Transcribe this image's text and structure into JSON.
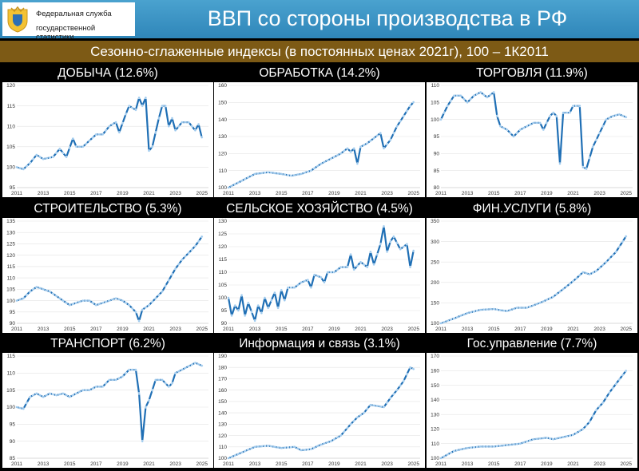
{
  "header": {
    "logo_line1": "Федеральная служба",
    "logo_line2": "государственной статистики",
    "title": "ВВП со стороны производства в РФ"
  },
  "subtitle": "Сезонно-сглаженные индексы (в постоянных ценах 2021г), 100 – 1К2011",
  "colors": {
    "line": "#1f6fb5",
    "marker": "#9cc9ee",
    "header": "#3a95c6",
    "subtitle_bar": "#7d5a15",
    "plot_bg": "#ffffff"
  },
  "chart_data": [
    {
      "type": "line",
      "title": "ДОБЫЧА (12.6%)",
      "xlim": [
        2011,
        2025.5
      ],
      "ylim": [
        95,
        120
      ],
      "yticks": [
        95,
        100,
        105,
        110,
        115,
        120
      ],
      "xticks": [
        2011,
        2013,
        2015,
        2017,
        2019,
        2021,
        2023,
        2025
      ],
      "knots": [
        [
          2011,
          100
        ],
        [
          2011.5,
          99.5
        ],
        [
          2012,
          101
        ],
        [
          2012.5,
          103
        ],
        [
          2013,
          102
        ],
        [
          2013.75,
          102.5
        ],
        [
          2014.25,
          104.5
        ],
        [
          2014.75,
          102.5
        ],
        [
          2015.25,
          107
        ],
        [
          2015.5,
          105
        ],
        [
          2016,
          105
        ],
        [
          2016.5,
          106.5
        ],
        [
          2017,
          108
        ],
        [
          2017.5,
          108
        ],
        [
          2018,
          110
        ],
        [
          2018.5,
          111
        ],
        [
          2018.75,
          108.5
        ],
        [
          2019.25,
          113
        ],
        [
          2019.5,
          115
        ],
        [
          2020,
          114
        ],
        [
          2020.25,
          117
        ],
        [
          2020.5,
          115
        ],
        [
          2020.75,
          117
        ],
        [
          2021,
          104
        ],
        [
          2021.25,
          105
        ],
        [
          2021.75,
          112
        ],
        [
          2022,
          115
        ],
        [
          2022.25,
          115
        ],
        [
          2022.5,
          110
        ],
        [
          2022.75,
          112
        ],
        [
          2023,
          109
        ],
        [
          2023.5,
          111
        ],
        [
          2024,
          111
        ],
        [
          2024.5,
          109
        ],
        [
          2024.75,
          110.5
        ],
        [
          2025.1,
          106
        ]
      ]
    },
    {
      "type": "line",
      "title": "ОБРАБОТКА (14.2%)",
      "xlim": [
        2011,
        2025.5
      ],
      "ylim": [
        100,
        160
      ],
      "yticks": [
        100,
        110,
        120,
        130,
        140,
        150,
        160
      ],
      "xticks": [
        2011,
        2013,
        2015,
        2017,
        2019,
        2021,
        2023,
        2025
      ],
      "knots": [
        [
          2011,
          100
        ],
        [
          2012,
          104
        ],
        [
          2013,
          108
        ],
        [
          2014,
          109
        ],
        [
          2015,
          108
        ],
        [
          2015.75,
          107
        ],
        [
          2016.5,
          108
        ],
        [
          2017.25,
          110
        ],
        [
          2018,
          114
        ],
        [
          2018.75,
          117
        ],
        [
          2019.5,
          120
        ],
        [
          2020,
          123
        ],
        [
          2020.25,
          121
        ],
        [
          2020.5,
          123
        ],
        [
          2020.75,
          114
        ],
        [
          2021,
          124
        ],
        [
          2021.5,
          126
        ],
        [
          2022,
          129
        ],
        [
          2022.5,
          132
        ],
        [
          2022.75,
          123
        ],
        [
          2023.25,
          128
        ],
        [
          2023.75,
          136
        ],
        [
          2024.25,
          142
        ],
        [
          2024.75,
          148
        ],
        [
          2025.1,
          151
        ]
      ]
    },
    {
      "type": "line",
      "title": "ТОРГОВЛЯ (11.9%)",
      "xlim": [
        2011,
        2025.5
      ],
      "ylim": [
        80,
        110
      ],
      "yticks": [
        80,
        85,
        90,
        95,
        100,
        105,
        110
      ],
      "xticks": [
        2011,
        2013,
        2015,
        2017,
        2019,
        2021,
        2023,
        2025
      ],
      "knots": [
        [
          2011,
          100
        ],
        [
          2011.5,
          104
        ],
        [
          2012,
          107
        ],
        [
          2012.5,
          107
        ],
        [
          2013,
          105
        ],
        [
          2013.5,
          107
        ],
        [
          2014,
          108
        ],
        [
          2014.5,
          106.5
        ],
        [
          2015,
          108
        ],
        [
          2015.25,
          101
        ],
        [
          2015.5,
          98
        ],
        [
          2016,
          97
        ],
        [
          2016.5,
          95
        ],
        [
          2017,
          97
        ],
        [
          2017.5,
          98
        ],
        [
          2018,
          99
        ],
        [
          2018.5,
          99
        ],
        [
          2018.75,
          97
        ],
        [
          2019.25,
          101
        ],
        [
          2019.5,
          102
        ],
        [
          2019.75,
          101
        ],
        [
          2020,
          87
        ],
        [
          2020.25,
          102
        ],
        [
          2020.75,
          102
        ],
        [
          2021,
          104
        ],
        [
          2021.5,
          104
        ],
        [
          2021.75,
          86
        ],
        [
          2022,
          85.5
        ],
        [
          2022.5,
          92
        ],
        [
          2023,
          96
        ],
        [
          2023.5,
          100
        ],
        [
          2024,
          101
        ],
        [
          2024.5,
          101.5
        ],
        [
          2025.1,
          100.5
        ]
      ]
    },
    {
      "type": "line",
      "title": "СТРОИТЕЛЬСТВО (5.3%)",
      "xlim": [
        2011,
        2025.5
      ],
      "ylim": [
        90,
        135
      ],
      "yticks": [
        90,
        95,
        100,
        105,
        110,
        115,
        120,
        125,
        130,
        135
      ],
      "xticks": [
        2011,
        2013,
        2015,
        2017,
        2019,
        2021,
        2023,
        2025
      ],
      "knots": [
        [
          2011,
          100
        ],
        [
          2011.5,
          101
        ],
        [
          2012,
          104
        ],
        [
          2012.5,
          106
        ],
        [
          2013,
          105
        ],
        [
          2013.5,
          104
        ],
        [
          2014,
          102
        ],
        [
          2014.5,
          100
        ],
        [
          2015,
          98
        ],
        [
          2015.5,
          99
        ],
        [
          2016,
          100
        ],
        [
          2016.5,
          100
        ],
        [
          2017,
          98
        ],
        [
          2017.5,
          99
        ],
        [
          2018,
          100
        ],
        [
          2018.5,
          101
        ],
        [
          2019,
          100
        ],
        [
          2019.5,
          98
        ],
        [
          2020,
          95
        ],
        [
          2020.25,
          91
        ],
        [
          2020.5,
          96
        ],
        [
          2021,
          98
        ],
        [
          2021.5,
          101
        ],
        [
          2022,
          104
        ],
        [
          2022.5,
          109
        ],
        [
          2023,
          114
        ],
        [
          2023.5,
          118
        ],
        [
          2024,
          121
        ],
        [
          2024.5,
          124
        ],
        [
          2025.1,
          129
        ]
      ]
    },
    {
      "type": "line",
      "title": "СЕЛЬСКОЕ ХОЗЯЙСТВО (4.5%)",
      "xlim": [
        2011,
        2025.5
      ],
      "ylim": [
        90,
        130
      ],
      "yticks": [
        90,
        95,
        100,
        105,
        110,
        115,
        120,
        125,
        130
      ],
      "xticks": [
        2011,
        2013,
        2015,
        2017,
        2019,
        2021,
        2023,
        2025
      ],
      "knots": [
        [
          2011,
          100
        ],
        [
          2011.25,
          93
        ],
        [
          2011.5,
          97
        ],
        [
          2011.75,
          95
        ],
        [
          2012,
          101
        ],
        [
          2012.25,
          93
        ],
        [
          2012.5,
          98
        ],
        [
          2013,
          91
        ],
        [
          2013.25,
          97
        ],
        [
          2013.5,
          94
        ],
        [
          2013.75,
          100
        ],
        [
          2014,
          96
        ],
        [
          2014.5,
          102
        ],
        [
          2014.75,
          96
        ],
        [
          2015,
          103
        ],
        [
          2015.25,
          99
        ],
        [
          2015.5,
          104
        ],
        [
          2016,
          104
        ],
        [
          2016.5,
          106
        ],
        [
          2017,
          107
        ],
        [
          2017.25,
          104
        ],
        [
          2017.5,
          109
        ],
        [
          2018,
          108
        ],
        [
          2018.25,
          106
        ],
        [
          2018.5,
          110
        ],
        [
          2019,
          110
        ],
        [
          2019.5,
          112
        ],
        [
          2020,
          112
        ],
        [
          2020.25,
          117
        ],
        [
          2020.5,
          111
        ],
        [
          2021,
          114
        ],
        [
          2021.5,
          112
        ],
        [
          2021.75,
          118
        ],
        [
          2022,
          113
        ],
        [
          2022.5,
          121
        ],
        [
          2022.75,
          128
        ],
        [
          2023,
          118
        ],
        [
          2023.25,
          122
        ],
        [
          2023.5,
          124
        ],
        [
          2024,
          119
        ],
        [
          2024.5,
          121
        ],
        [
          2024.75,
          112
        ],
        [
          2025.1,
          121
        ]
      ]
    },
    {
      "type": "line",
      "title": "ФИН.УСЛУГИ (5.8%)",
      "xlim": [
        2011,
        2025.5
      ],
      "ylim": [
        100,
        350
      ],
      "yticks": [
        100,
        150,
        200,
        250,
        300,
        350
      ],
      "xticks": [
        2011,
        2013,
        2015,
        2017,
        2019,
        2021,
        2023,
        2025
      ],
      "knots": [
        [
          2011,
          100
        ],
        [
          2012,
          112
        ],
        [
          2013,
          125
        ],
        [
          2014,
          133
        ],
        [
          2015,
          135
        ],
        [
          2015.5,
          132
        ],
        [
          2016,
          130
        ],
        [
          2016.75,
          138
        ],
        [
          2017.5,
          138
        ],
        [
          2018.5,
          150
        ],
        [
          2019.5,
          165
        ],
        [
          2020.5,
          190
        ],
        [
          2021.25,
          210
        ],
        [
          2021.75,
          225
        ],
        [
          2022.25,
          220
        ],
        [
          2022.75,
          228
        ],
        [
          2023.5,
          250
        ],
        [
          2024.25,
          275
        ],
        [
          2024.75,
          300
        ],
        [
          2025.1,
          318
        ]
      ]
    },
    {
      "type": "line",
      "title": "ТРАНСПОРТ (6.2%)",
      "xlim": [
        2011,
        2025.5
      ],
      "ylim": [
        85,
        115
      ],
      "yticks": [
        85,
        90,
        95,
        100,
        105,
        110,
        115
      ],
      "xticks": [
        2011,
        2013,
        2015,
        2017,
        2019,
        2021,
        2023,
        2025
      ],
      "knots": [
        [
          2011,
          100
        ],
        [
          2011.5,
          99.5
        ],
        [
          2012,
          103
        ],
        [
          2012.5,
          104
        ],
        [
          2013,
          103
        ],
        [
          2013.5,
          104
        ],
        [
          2014,
          103.5
        ],
        [
          2014.5,
          104
        ],
        [
          2015,
          103
        ],
        [
          2015.5,
          104
        ],
        [
          2016,
          105
        ],
        [
          2016.5,
          105
        ],
        [
          2017,
          106
        ],
        [
          2017.5,
          106
        ],
        [
          2018,
          108
        ],
        [
          2018.5,
          108
        ],
        [
          2019,
          109
        ],
        [
          2019.5,
          111
        ],
        [
          2020,
          111
        ],
        [
          2020.25,
          104
        ],
        [
          2020.5,
          90
        ],
        [
          2020.75,
          100
        ],
        [
          2021,
          102
        ],
        [
          2021.5,
          108
        ],
        [
          2022,
          108
        ],
        [
          2022.5,
          106
        ],
        [
          2022.75,
          107
        ],
        [
          2023,
          110
        ],
        [
          2023.5,
          111
        ],
        [
          2024,
          112
        ],
        [
          2024.5,
          113
        ],
        [
          2025.1,
          112
        ]
      ]
    },
    {
      "type": "line",
      "title": "Информация и связь (3.1%)",
      "xlim": [
        2011,
        2025.5
      ],
      "ylim": [
        100,
        190
      ],
      "yticks": [
        100,
        110,
        120,
        130,
        140,
        150,
        160,
        170,
        180,
        190
      ],
      "xticks": [
        2011,
        2013,
        2015,
        2017,
        2019,
        2021,
        2023,
        2025
      ],
      "knots": [
        [
          2011,
          100
        ],
        [
          2012,
          105
        ],
        [
          2013,
          110
        ],
        [
          2014,
          111
        ],
        [
          2015,
          109
        ],
        [
          2016,
          110
        ],
        [
          2016.5,
          107
        ],
        [
          2017.25,
          108
        ],
        [
          2018,
          112
        ],
        [
          2018.75,
          115
        ],
        [
          2019.5,
          120
        ],
        [
          2020.25,
          130
        ],
        [
          2020.75,
          136
        ],
        [
          2021.25,
          140
        ],
        [
          2021.75,
          147
        ],
        [
          2022.25,
          146
        ],
        [
          2022.75,
          145
        ],
        [
          2023.25,
          153
        ],
        [
          2023.75,
          160
        ],
        [
          2024.25,
          168
        ],
        [
          2024.75,
          180
        ],
        [
          2025.1,
          178
        ]
      ]
    },
    {
      "type": "line",
      "title": "Гос.управление (7.7%)",
      "xlim": [
        2011,
        2025.5
      ],
      "ylim": [
        100,
        170
      ],
      "yticks": [
        100,
        110,
        120,
        130,
        140,
        150,
        160,
        170
      ],
      "xticks": [
        2011,
        2013,
        2015,
        2017,
        2019,
        2021,
        2023,
        2025
      ],
      "knots": [
        [
          2011,
          100
        ],
        [
          2012,
          105
        ],
        [
          2013,
          107
        ],
        [
          2014,
          108
        ],
        [
          2015,
          108
        ],
        [
          2016,
          109
        ],
        [
          2017,
          110
        ],
        [
          2018,
          113
        ],
        [
          2019,
          114
        ],
        [
          2019.5,
          113
        ],
        [
          2020.5,
          115
        ],
        [
          2021,
          116
        ],
        [
          2021.75,
          120
        ],
        [
          2022.25,
          125
        ],
        [
          2022.75,
          133
        ],
        [
          2023.25,
          138
        ],
        [
          2023.75,
          145
        ],
        [
          2024.25,
          151
        ],
        [
          2024.75,
          157
        ],
        [
          2025.1,
          161
        ]
      ]
    }
  ]
}
